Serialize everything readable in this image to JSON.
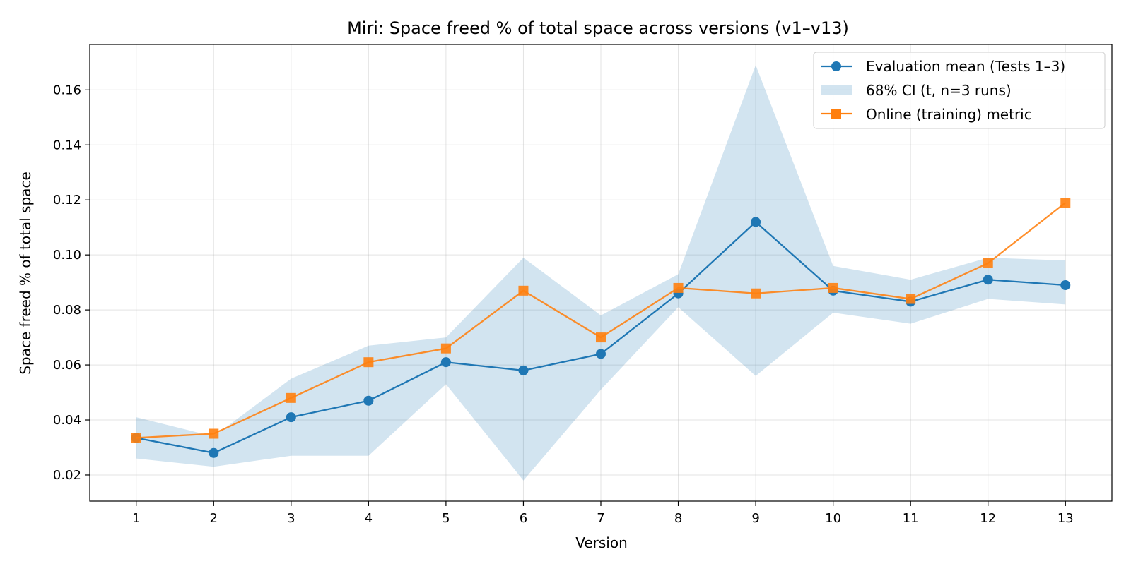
{
  "chart_data": {
    "type": "line",
    "title": "Miri: Space freed % of total space across versions (v1–v13)",
    "xlabel": "Version",
    "ylabel": "Space freed % of total space",
    "x": [
      1,
      2,
      3,
      4,
      5,
      6,
      7,
      8,
      9,
      10,
      11,
      12,
      13
    ],
    "xlim": [
      0.4,
      13.6
    ],
    "ylim": [
      0.0105,
      0.1765
    ],
    "yticks": [
      0.02,
      0.04,
      0.06,
      0.08,
      0.1,
      0.12,
      0.14,
      0.16
    ],
    "ytick_labels": [
      "0.02",
      "0.04",
      "0.06",
      "0.08",
      "0.10",
      "0.12",
      "0.14",
      "0.16"
    ],
    "grid": true,
    "legend_position": "top-right",
    "series": [
      {
        "name": "Evaluation mean (Tests 1–3)",
        "marker": "circle",
        "color": "#1f77b4",
        "values": [
          0.0335,
          0.028,
          0.041,
          0.047,
          0.061,
          0.058,
          0.064,
          0.086,
          0.112,
          0.087,
          0.083,
          0.091,
          0.089
        ]
      },
      {
        "name": "Online (training) metric",
        "marker": "square",
        "color": "#ff7f0e",
        "values": [
          0.0335,
          0.035,
          0.048,
          0.061,
          0.066,
          0.087,
          0.07,
          0.088,
          0.086,
          0.088,
          0.084,
          0.097,
          0.119
        ]
      }
    ],
    "band": {
      "name": "68% CI (t, n=3 runs)",
      "color": "#1f77b4",
      "opacity": 0.2,
      "lower": [
        0.026,
        0.023,
        0.027,
        0.027,
        0.053,
        0.018,
        0.051,
        0.081,
        0.056,
        0.079,
        0.075,
        0.084,
        0.082
      ],
      "upper": [
        0.041,
        0.034,
        0.055,
        0.067,
        0.07,
        0.099,
        0.078,
        0.093,
        0.169,
        0.096,
        0.091,
        0.099,
        0.098
      ]
    }
  }
}
